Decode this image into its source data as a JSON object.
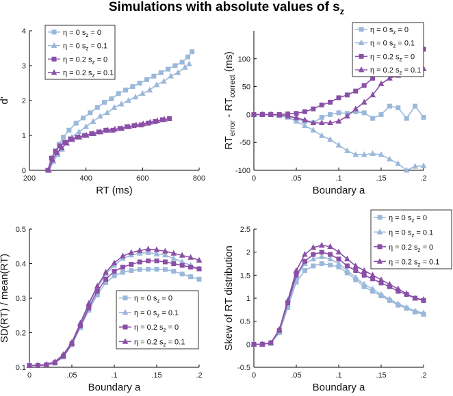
{
  "figure": {
    "title_main": "Simulations with absolute values of s",
    "title_sub": "z"
  },
  "series_style": [
    {
      "legend": [
        "η = 0 s",
        "z",
        " = 0"
      ],
      "color": "#9ab8da",
      "marker": "square"
    },
    {
      "legend": [
        "η = 0 s",
        "z",
        " = 0.1"
      ],
      "color": "#9ab8da",
      "marker": "triangle"
    },
    {
      "legend": [
        "η = 0.2 s",
        "z",
        " = 0"
      ],
      "color": "#8a4fa6",
      "marker": "square"
    },
    {
      "legend": [
        "η = 0.2 s",
        "z",
        " = 0.1"
      ],
      "color": "#8a4fa6",
      "marker": "triangle"
    }
  ],
  "chart_data": [
    {
      "type": "line",
      "panel": "top-left",
      "xlabel": "RT (ms)",
      "ylabel": "d'",
      "xlim": [
        200,
        800
      ],
      "ylim": [
        0,
        4
      ],
      "xticks": [
        "200",
        "400",
        "600",
        "800"
      ],
      "yticks": [
        "0",
        "1",
        "2",
        "3",
        "4"
      ],
      "legend_position": "top-left",
      "series": [
        {
          "name": "η = 0 sz = 0",
          "x": [
            267,
            280,
            292,
            305,
            320,
            340,
            365,
            390,
            415,
            440,
            465,
            490,
            515,
            540,
            565,
            590,
            615,
            640,
            665,
            690,
            715,
            740,
            760,
            775
          ],
          "y": [
            0.0,
            0.3,
            0.55,
            0.75,
            0.95,
            1.15,
            1.35,
            1.5,
            1.65,
            1.8,
            1.95,
            2.05,
            2.2,
            2.3,
            2.4,
            2.5,
            2.6,
            2.7,
            2.8,
            2.9,
            3.0,
            3.1,
            3.25,
            3.4
          ]
        },
        {
          "name": "η = 0 sz = 0.1",
          "x": [
            270,
            285,
            300,
            315,
            330,
            350,
            375,
            400,
            425,
            450,
            475,
            500,
            525,
            550,
            575,
            600,
            625,
            650,
            675,
            700,
            725,
            750,
            765
          ],
          "y": [
            0.0,
            0.25,
            0.45,
            0.6,
            0.8,
            0.95,
            1.1,
            1.25,
            1.4,
            1.55,
            1.65,
            1.8,
            1.9,
            2.0,
            2.1,
            2.2,
            2.3,
            2.45,
            2.55,
            2.7,
            2.8,
            2.95,
            3.05
          ]
        },
        {
          "name": "η = 0.2 sz = 0",
          "x": [
            265,
            278,
            292,
            308,
            325,
            345,
            370,
            395,
            420,
            445,
            470,
            495,
            520,
            545,
            570,
            595,
            620,
            645,
            670,
            695
          ],
          "y": [
            0.0,
            0.35,
            0.55,
            0.7,
            0.8,
            0.9,
            0.95,
            1.0,
            1.05,
            1.1,
            1.15,
            1.15,
            1.2,
            1.25,
            1.28,
            1.3,
            1.35,
            1.4,
            1.45,
            1.48
          ]
        },
        {
          "name": "η = 0.2 sz = 0.1",
          "x": [
            268,
            282,
            298,
            314,
            332,
            352,
            377,
            402,
            427,
            452,
            477,
            502,
            527,
            552,
            577,
            602,
            627,
            652,
            677
          ],
          "y": [
            0.0,
            0.3,
            0.5,
            0.65,
            0.78,
            0.88,
            0.95,
            1.0,
            1.05,
            1.1,
            1.15,
            1.18,
            1.2,
            1.25,
            1.3,
            1.33,
            1.38,
            1.42,
            1.46
          ]
        }
      ]
    },
    {
      "type": "line",
      "panel": "top-right",
      "xlabel": "Boundary a",
      "ylabel_parts": [
        "RT",
        "error",
        " - RT",
        "correct",
        " (ms)"
      ],
      "xlim": [
        0,
        0.2
      ],
      "ylim": [
        -100,
        150
      ],
      "xticks": [
        "0",
        ".05",
        ".1",
        ".15",
        ".2"
      ],
      "yticks": [
        "-100",
        "-50",
        "0",
        "50",
        "100"
      ],
      "legend_position": "top-right",
      "x": [
        0,
        0.01,
        0.02,
        0.03,
        0.04,
        0.05,
        0.06,
        0.07,
        0.08,
        0.09,
        0.1,
        0.11,
        0.12,
        0.13,
        0.14,
        0.15,
        0.16,
        0.17,
        0.18,
        0.19,
        0.2
      ],
      "series": [
        {
          "name": "η = 0 sz = 0",
          "y": [
            0,
            0,
            0,
            -1,
            -3,
            -8,
            -12,
            -15,
            -5,
            0,
            3,
            2,
            5,
            3,
            -7,
            0,
            15,
            12,
            -7,
            15,
            -5
          ]
        },
        {
          "name": "η = 0 sz = 0.1",
          "y": [
            0,
            0,
            0,
            -2,
            -5,
            -12,
            -20,
            -28,
            -38,
            -45,
            -55,
            -65,
            -72,
            -72,
            -70,
            -72,
            -80,
            -88,
            -100,
            -93,
            -92
          ]
        },
        {
          "name": "η = 0.2 sz = 0",
          "y": [
            0,
            0,
            0,
            0,
            1,
            2,
            5,
            10,
            17,
            22,
            30,
            35,
            42,
            52,
            65,
            80,
            95,
            98,
            100,
            103,
            117
          ]
        },
        {
          "name": "η = 0.2 sz = 0.1",
          "y": [
            0,
            0,
            0,
            -1,
            -3,
            -6,
            -10,
            -15,
            -15,
            -15,
            -12,
            -3,
            10,
            22,
            35,
            55,
            65,
            70,
            85,
            80,
            82
          ]
        }
      ]
    },
    {
      "type": "line",
      "panel": "bottom-left",
      "xlabel": "Boundary a",
      "ylabel": "SD(RT) / mean(RT)",
      "xlim": [
        0,
        0.2
      ],
      "ylim": [
        0.1,
        0.5
      ],
      "xticks": [
        "0",
        ".05",
        ".1",
        ".15",
        ".2"
      ],
      "yticks": [
        "0.1",
        "0.2",
        "0.3",
        "0.4",
        "0.5"
      ],
      "legend_position": "bottom-right",
      "x": [
        0,
        0.01,
        0.02,
        0.03,
        0.04,
        0.05,
        0.06,
        0.07,
        0.08,
        0.09,
        0.1,
        0.11,
        0.12,
        0.13,
        0.14,
        0.15,
        0.16,
        0.17,
        0.18,
        0.19,
        0.2
      ],
      "series": [
        {
          "name": "η = 0 sz = 0",
          "y": [
            0.105,
            0.105,
            0.107,
            0.112,
            0.13,
            0.165,
            0.215,
            0.265,
            0.31,
            0.345,
            0.365,
            0.375,
            0.38,
            0.383,
            0.384,
            0.384,
            0.383,
            0.378,
            0.37,
            0.362,
            0.355
          ]
        },
        {
          "name": "η = 0 sz = 0.1",
          "y": [
            0.105,
            0.106,
            0.108,
            0.115,
            0.135,
            0.17,
            0.225,
            0.28,
            0.33,
            0.37,
            0.395,
            0.415,
            0.425,
            0.43,
            0.432,
            0.428,
            0.425,
            0.415,
            0.405,
            0.395,
            0.385
          ]
        },
        {
          "name": "η = 0.2 sz = 0",
          "y": [
            0.105,
            0.105,
            0.107,
            0.113,
            0.132,
            0.168,
            0.22,
            0.272,
            0.32,
            0.355,
            0.378,
            0.39,
            0.398,
            0.405,
            0.408,
            0.408,
            0.405,
            0.4,
            0.395,
            0.39,
            0.385
          ]
        },
        {
          "name": "η = 0.2 sz = 0.1",
          "y": [
            0.105,
            0.106,
            0.108,
            0.116,
            0.137,
            0.172,
            0.228,
            0.285,
            0.335,
            0.375,
            0.402,
            0.422,
            0.432,
            0.438,
            0.442,
            0.44,
            0.436,
            0.43,
            0.424,
            0.418,
            0.41
          ]
        }
      ]
    },
    {
      "type": "line",
      "panel": "bottom-right",
      "xlabel": "Boundary a",
      "ylabel": "Skew of RT distribution",
      "xlim": [
        0,
        0.2
      ],
      "ylim": [
        -0.5,
        2.5
      ],
      "xticks": [
        "0",
        ".05",
        ".1",
        ".15",
        ".2"
      ],
      "yticks": [
        "-0.5",
        "0",
        "0.5",
        "1",
        "1.5",
        "2",
        "2.5"
      ],
      "legend_position": "top-right",
      "x": [
        0,
        0.01,
        0.02,
        0.03,
        0.04,
        0.05,
        0.06,
        0.07,
        0.08,
        0.09,
        0.1,
        0.11,
        0.12,
        0.13,
        0.14,
        0.15,
        0.16,
        0.17,
        0.18,
        0.19,
        0.2
      ],
      "series": [
        {
          "name": "η = 0 sz = 0",
          "y": [
            0.0,
            0.0,
            0.02,
            0.25,
            0.8,
            1.35,
            1.6,
            1.7,
            1.75,
            1.72,
            1.68,
            1.55,
            1.4,
            1.25,
            1.15,
            1.05,
            0.95,
            0.85,
            0.78,
            0.7,
            0.65
          ]
        },
        {
          "name": "η = 0 sz = 0.1",
          "y": [
            0.0,
            0.0,
            0.02,
            0.28,
            0.85,
            1.45,
            1.75,
            1.85,
            1.9,
            1.85,
            1.75,
            1.6,
            1.45,
            1.3,
            1.2,
            1.08,
            0.98,
            0.88,
            0.8,
            0.72,
            0.68
          ]
        },
        {
          "name": "η = 0.2 sz = 0",
          "y": [
            0.0,
            0.0,
            0.03,
            0.3,
            0.9,
            1.5,
            1.8,
            1.95,
            2.0,
            1.95,
            1.85,
            1.7,
            1.6,
            1.5,
            1.42,
            1.33,
            1.25,
            1.15,
            1.08,
            1.0,
            0.95
          ]
        },
        {
          "name": "η = 0.2 sz = 0.1",
          "y": [
            0.0,
            0.0,
            0.03,
            0.32,
            0.95,
            1.6,
            1.95,
            2.1,
            2.15,
            2.12,
            2.0,
            1.85,
            1.7,
            1.6,
            1.5,
            1.4,
            1.3,
            1.2,
            1.1,
            1.0,
            0.97
          ]
        }
      ]
    }
  ]
}
